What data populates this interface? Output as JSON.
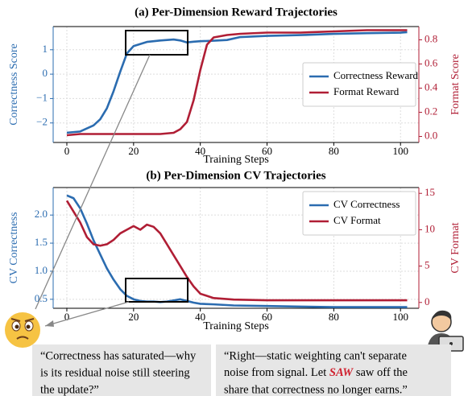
{
  "chart_data": [
    {
      "type": "line",
      "title": "(a) Per-Dimension Reward Trajectories",
      "xlabel": "Training Steps",
      "ylabel": "Correctness Score",
      "y2label": "Format Score",
      "x": [
        0,
        4,
        8,
        10,
        12,
        14,
        16,
        18,
        20,
        24,
        28,
        32,
        34,
        36,
        38,
        40,
        42,
        44,
        48,
        52,
        60,
        70,
        80,
        90,
        100,
        102
      ],
      "series": [
        {
          "name": "Correctness Reward",
          "color": "#2b6cb0",
          "values": [
            -2.4,
            -2.35,
            -2.1,
            -1.85,
            -1.4,
            -0.7,
            0.1,
            0.85,
            1.15,
            1.32,
            1.38,
            1.42,
            1.38,
            1.3,
            1.33,
            1.35,
            1.36,
            1.37,
            1.4,
            1.52,
            1.57,
            1.6,
            1.65,
            1.68,
            1.7,
            1.72
          ]
        },
        {
          "name": "Format Reward",
          "color": "#b01e35",
          "axis": "y2",
          "values": [
            0.01,
            0.02,
            0.02,
            0.02,
            0.02,
            0.02,
            0.02,
            0.02,
            0.02,
            0.02,
            0.02,
            0.03,
            0.06,
            0.12,
            0.3,
            0.55,
            0.76,
            0.82,
            0.84,
            0.85,
            0.86,
            0.86,
            0.87,
            0.88,
            0.88,
            0.88
          ]
        }
      ],
      "xlim": [
        -4.1,
        105.5
      ],
      "xticks": [
        0,
        20,
        40,
        60,
        80,
        100
      ],
      "ylim": [
        -2.8,
        1.95
      ],
      "yticks": [
        {
          "value": -2,
          "label": "−2"
        },
        {
          "value": -1,
          "label": "−1"
        },
        0,
        1
      ],
      "y2lim": [
        -0.05,
        0.91
      ],
      "y2ticks": [
        {
          "value": 0,
          "label": "0.0"
        },
        0.2,
        0.4,
        0.6,
        0.8
      ],
      "grid": true,
      "legend": "center right"
    },
    {
      "type": "line",
      "title": "(b) Per-Dimension CV Trajectories",
      "xlabel": "Training Steps",
      "ylabel": "CV Correctness",
      "y2label": "CV Format",
      "x": [
        0,
        2,
        4,
        6,
        8,
        10,
        12,
        14,
        16,
        18,
        20,
        22,
        24,
        26,
        28,
        30,
        32,
        34,
        36,
        38,
        40,
        44,
        50,
        60,
        70,
        80,
        90,
        100,
        102
      ],
      "series": [
        {
          "name": "CV Correctness",
          "color": "#2b6cb0",
          "values": [
            2.35,
            2.3,
            2.12,
            1.85,
            1.55,
            1.3,
            1.05,
            0.85,
            0.68,
            0.56,
            0.5,
            0.47,
            0.46,
            0.46,
            0.45,
            0.46,
            0.48,
            0.5,
            0.47,
            0.44,
            0.42,
            0.41,
            0.39,
            0.38,
            0.37,
            0.36,
            0.36,
            0.36,
            0.36
          ]
        },
        {
          "name": "CV Format",
          "color": "#b01e35",
          "axis": "y2",
          "values": [
            14,
            12.5,
            11,
            9,
            8,
            7.8,
            8,
            8.6,
            9.5,
            10,
            10.5,
            10,
            10.7,
            10.4,
            9.5,
            8,
            6.5,
            5,
            3.5,
            2.2,
            1.2,
            0.6,
            0.4,
            0.3,
            0.3,
            0.3,
            0.3,
            0.3,
            0.3
          ]
        }
      ],
      "xlim": [
        -4.1,
        105.5
      ],
      "xticks": [
        0,
        20,
        40,
        60,
        80,
        100
      ],
      "ylim": [
        0.34,
        2.49
      ],
      "yticks": [
        0.5,
        {
          "value": 1,
          "label": "1.0"
        },
        1.5,
        {
          "value": 2,
          "label": "2.0"
        }
      ],
      "y2lim": [
        -0.8,
        15.8
      ],
      "y2ticks": [
        0,
        5,
        10,
        15
      ],
      "grid": true,
      "legend": "upper right"
    }
  ],
  "dialogue": {
    "left_bubble": [
      "“Correctness has saturated—why",
      "is its residual noise still steering",
      "the update?”"
    ],
    "right_bubble": {
      "line1": "“Right—static weighting can't separate",
      "line2_before": "noise from signal. Let ",
      "emphasis": "SAW",
      "line2_after": " saw off the",
      "line3": "share that correctness no longer earns.”"
    }
  }
}
